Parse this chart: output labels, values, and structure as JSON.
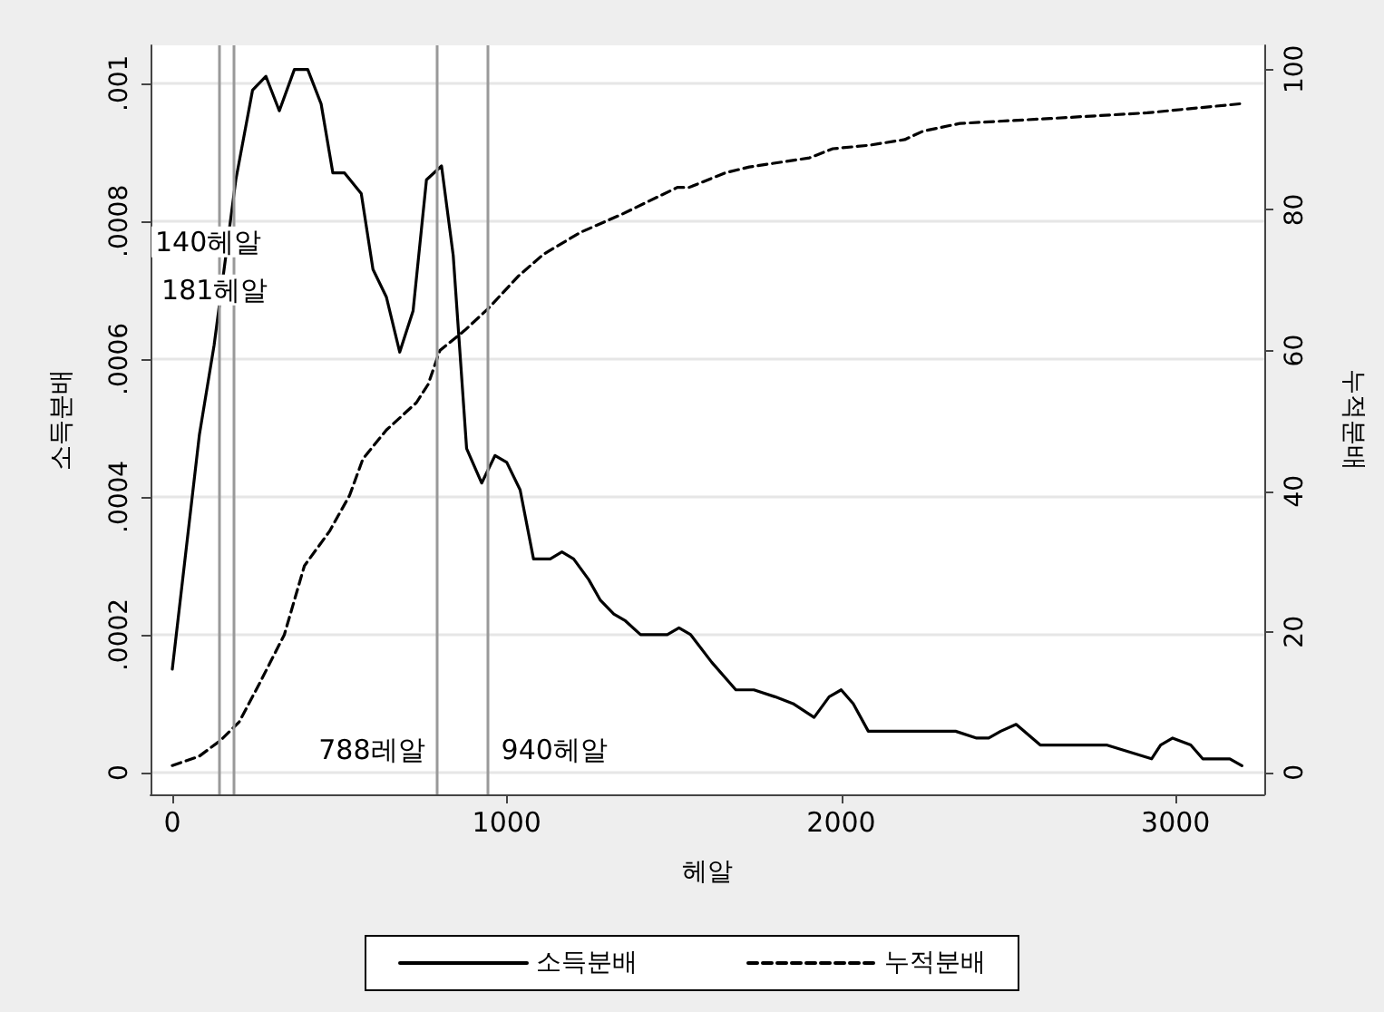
{
  "chart_data": {
    "type": "line",
    "xlabel": "헤알",
    "ylabel": "소득분배",
    "y2label": "누적분배",
    "xlim": [
      -65,
      3265
    ],
    "xticks": [
      0,
      1000,
      2000,
      3000
    ],
    "ylim": [
      -3.16e-05,
      0.001055
    ],
    "yticks": [
      {
        "value": 0,
        "label": "0"
      },
      {
        "value": 0.0002,
        "label": ".0002"
      },
      {
        "value": 0.0004,
        "label": ".0004"
      },
      {
        "value": 0.0006,
        "label": ".0006"
      },
      {
        "value": 0.0008,
        "label": ".0008"
      },
      {
        "value": 0.001,
        "label": ".001"
      }
    ],
    "y2lim": [
      -3.1,
      103.4
    ],
    "y2ticks": [
      0,
      20,
      40,
      60,
      80,
      100
    ],
    "grid": "y",
    "legend": "bottom",
    "marker": "none",
    "ref_lines": [
      {
        "axis": "x",
        "value": 140,
        "label": "140헤알",
        "color": "#999999"
      },
      {
        "axis": "x",
        "value": 181,
        "label": "181헤알",
        "color": "#999999"
      },
      {
        "axis": "x",
        "value": 788,
        "label": "788레알",
        "color": "#999999"
      },
      {
        "axis": "x",
        "value": 940,
        "label": "940헤알",
        "color": "#999999"
      }
    ],
    "series": [
      {
        "name": "소득분배",
        "color": "#000000",
        "line_style": "solid",
        "x": [
          0,
          81,
          125,
          190,
          240,
          280,
          320,
          365,
          405,
          445,
          480,
          515,
          565,
          600,
          640,
          680,
          720,
          760,
          805,
          840,
          880,
          925,
          965,
          1000,
          1040,
          1080,
          1130,
          1165,
          1200,
          1245,
          1280,
          1320,
          1355,
          1400,
          1445,
          1480,
          1515,
          1550,
          1613,
          1685,
          1739,
          1802,
          1856,
          1919,
          1964,
          2000,
          2036,
          2081,
          2126,
          2270,
          2342,
          2405,
          2441,
          2477,
          2523,
          2595,
          2631,
          2793,
          2928,
          2955,
          2991,
          3045,
          3081,
          3117,
          3162,
          3198
        ],
        "values": [
          0.00015,
          0.00049,
          0.00062,
          0.00086,
          0.00099,
          0.00101,
          0.00096,
          0.00102,
          0.00102,
          0.00097,
          0.00087,
          0.00087,
          0.00084,
          0.00073,
          0.00069,
          0.00061,
          0.00067,
          0.00086,
          0.00088,
          0.00075,
          0.00047,
          0.00042,
          0.00046,
          0.00045,
          0.00041,
          0.00031,
          0.00031,
          0.00032,
          0.00031,
          0.00028,
          0.00025,
          0.00023,
          0.00022,
          0.0002,
          0.0002,
          0.0002,
          0.00021,
          0.0002,
          0.00016,
          0.00012,
          0.00012,
          0.00011,
          0.0001,
          8e-05,
          0.00011,
          0.00012,
          0.0001,
          6e-05,
          6e-05,
          6e-05,
          6e-05,
          5e-05,
          5e-05,
          6e-05,
          7e-05,
          4e-05,
          4e-05,
          4e-05,
          2e-05,
          4e-05,
          5e-05,
          4e-05,
          2e-05,
          2e-05,
          2e-05,
          1e-05
        ]
      },
      {
        "name": "누적분배",
        "color": "#000000",
        "line_style": "dashed",
        "axis": "y2",
        "x": [
          0,
          80,
          145,
          200,
          260,
          335,
          395,
          470,
          530,
          570,
          640,
          730,
          765,
          800,
          875,
          945,
          1035,
          1110,
          1220,
          1345,
          1510,
          1545,
          1655,
          1725,
          1905,
          1975,
          2085,
          2190,
          2245,
          2355,
          2625,
          2915,
          3195
        ],
        "values": [
          1.0,
          2.3,
          4.6,
          7.2,
          12.6,
          19.6,
          29.4,
          34.3,
          39.4,
          44.6,
          48.7,
          52.6,
          55.2,
          60,
          62.9,
          66,
          70.6,
          73.7,
          76.8,
          79.4,
          83.2,
          83.2,
          85.3,
          86.1,
          87.4,
          88.7,
          89.2,
          90,
          91.2,
          92.3,
          93,
          93.8,
          95.1
        ]
      }
    ]
  }
}
